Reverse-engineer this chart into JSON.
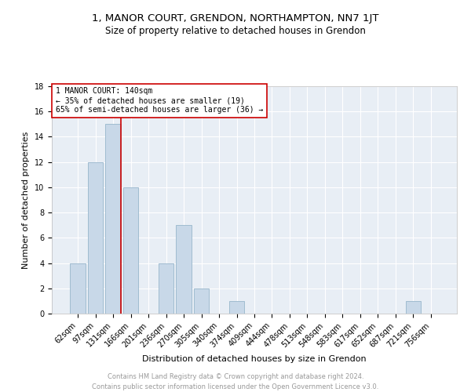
{
  "title": "1, MANOR COURT, GRENDON, NORTHAMPTON, NN7 1JT",
  "subtitle": "Size of property relative to detached houses in Grendon",
  "xlabel": "Distribution of detached houses by size in Grendon",
  "ylabel": "Number of detached properties",
  "footer": "Contains HM Land Registry data © Crown copyright and database right 2024.\nContains public sector information licensed under the Open Government Licence v3.0.",
  "categories": [
    "62sqm",
    "97sqm",
    "131sqm",
    "166sqm",
    "201sqm",
    "236sqm",
    "270sqm",
    "305sqm",
    "340sqm",
    "374sqm",
    "409sqm",
    "444sqm",
    "478sqm",
    "513sqm",
    "548sqm",
    "583sqm",
    "617sqm",
    "652sqm",
    "687sqm",
    "721sqm",
    "756sqm"
  ],
  "values": [
    4,
    12,
    15,
    10,
    0,
    4,
    7,
    2,
    0,
    1,
    0,
    0,
    0,
    0,
    0,
    0,
    0,
    0,
    0,
    1,
    0
  ],
  "bar_color": "#c8d8e8",
  "bar_edge_color": "#a0bcd0",
  "vline_x_index": 2,
  "vline_color": "#cc0000",
  "annotation_text": "1 MANOR COURT: 140sqm\n← 35% of detached houses are smaller (19)\n65% of semi-detached houses are larger (36) →",
  "annotation_box_color": "#ffffff",
  "annotation_box_edge": "#cc0000",
  "ylim": [
    0,
    18
  ],
  "yticks": [
    0,
    2,
    4,
    6,
    8,
    10,
    12,
    14,
    16,
    18
  ],
  "plot_bg_color": "#e8eef5",
  "title_fontsize": 9.5,
  "subtitle_fontsize": 8.5,
  "ylabel_fontsize": 8,
  "xlabel_fontsize": 8,
  "tick_fontsize": 7,
  "annotation_fontsize": 7,
  "footer_fontsize": 6,
  "footer_color": "#999999"
}
